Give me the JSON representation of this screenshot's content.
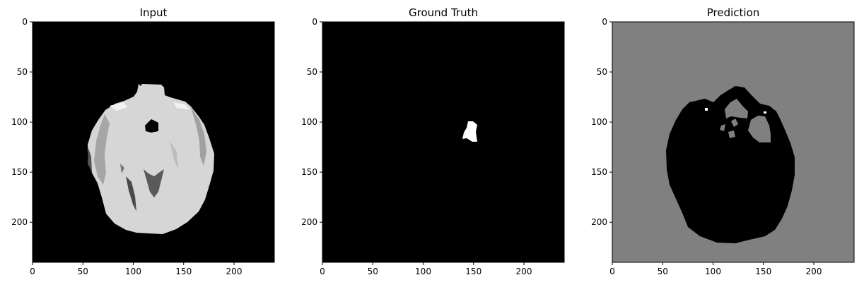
{
  "chart_data": [
    {
      "type": "heatmap",
      "title": "Input",
      "colormap": "gray",
      "xlim": [
        0,
        240
      ],
      "ylim": [
        240,
        0
      ],
      "xticks": [
        0,
        50,
        100,
        150,
        200
      ],
      "yticks": [
        0,
        50,
        100,
        150,
        200
      ],
      "content": "axial brain MRI slice, bright tissue on black background"
    },
    {
      "type": "heatmap",
      "title": "Ground Truth",
      "colormap": "gray",
      "xlim": [
        0,
        240
      ],
      "ylim": [
        240,
        0
      ],
      "xticks": [
        0,
        50,
        100,
        150,
        200
      ],
      "yticks": [
        0,
        50,
        100,
        150,
        200
      ],
      "content": "binary mask, small white region near x≈150, y≈105 on black"
    },
    {
      "type": "heatmap",
      "title": "Prediction",
      "colormap": "gray",
      "xlim": [
        0,
        240
      ],
      "ylim": [
        240,
        0
      ],
      "xticks": [
        0,
        50,
        100,
        150,
        200
      ],
      "yticks": [
        0,
        50,
        100,
        150,
        200
      ],
      "content": "gray background with black brain-shaped region and gray cavities"
    }
  ],
  "colors": {
    "background": "#000000",
    "tissue": "#d9d9d9",
    "mask": "#ffffff",
    "prediction_bg": "#808080",
    "prediction_region": "#000000"
  }
}
